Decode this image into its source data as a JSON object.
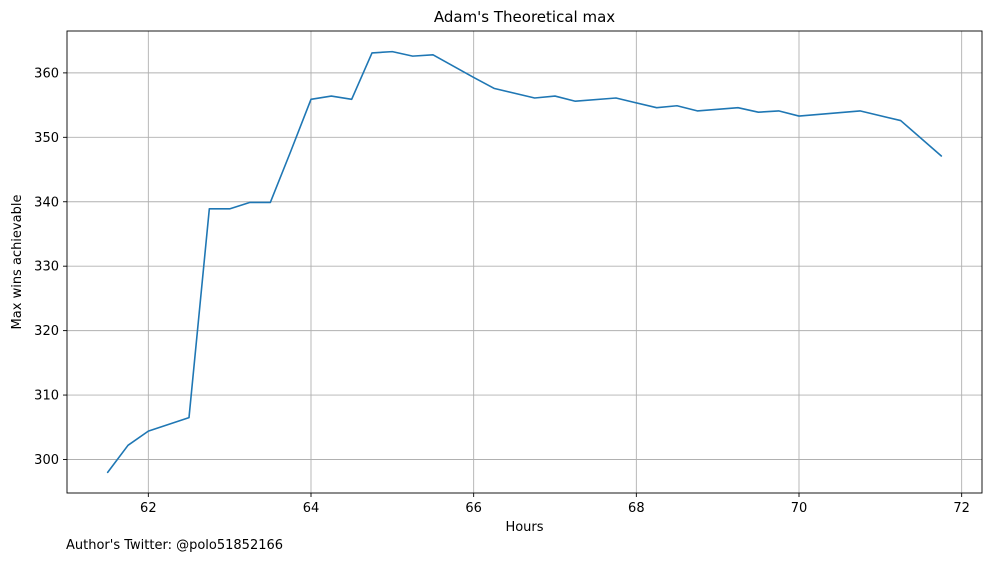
{
  "footnote": "Author's Twitter: @polo51852166",
  "chart_data": {
    "type": "line",
    "title": "Adam's Theoretical max",
    "xlabel": "Hours",
    "ylabel": "Max wins achievable",
    "xlim": [
      61.0,
      72.25
    ],
    "ylim": [
      294.8,
      366.5
    ],
    "xticks": [
      62,
      64,
      66,
      68,
      70,
      72
    ],
    "yticks": [
      300,
      310,
      320,
      330,
      340,
      350,
      360
    ],
    "grid": true,
    "line_color": "#1f77b4",
    "series": [
      {
        "x": [
          61.5,
          61.75,
          62.0,
          62.5,
          62.75,
          63.0,
          63.25,
          63.5,
          63.75,
          64.0,
          64.25,
          64.5,
          64.75,
          65.0,
          65.25,
          65.5,
          66.0,
          66.25,
          66.75,
          67.0,
          67.25,
          67.75,
          68.25,
          68.5,
          68.75,
          69.25,
          69.5,
          69.75,
          70.0,
          70.75,
          71.25,
          71.75
        ],
        "y": [
          298.0,
          302.2,
          304.4,
          306.5,
          338.9,
          338.9,
          339.9,
          339.9,
          347.8,
          355.9,
          356.4,
          355.9,
          363.1,
          363.3,
          362.6,
          362.8,
          359.3,
          357.6,
          356.1,
          356.4,
          355.6,
          356.1,
          354.6,
          354.9,
          354.1,
          354.6,
          353.9,
          354.1,
          353.3,
          354.1,
          352.6,
          347.1
        ]
      }
    ]
  }
}
